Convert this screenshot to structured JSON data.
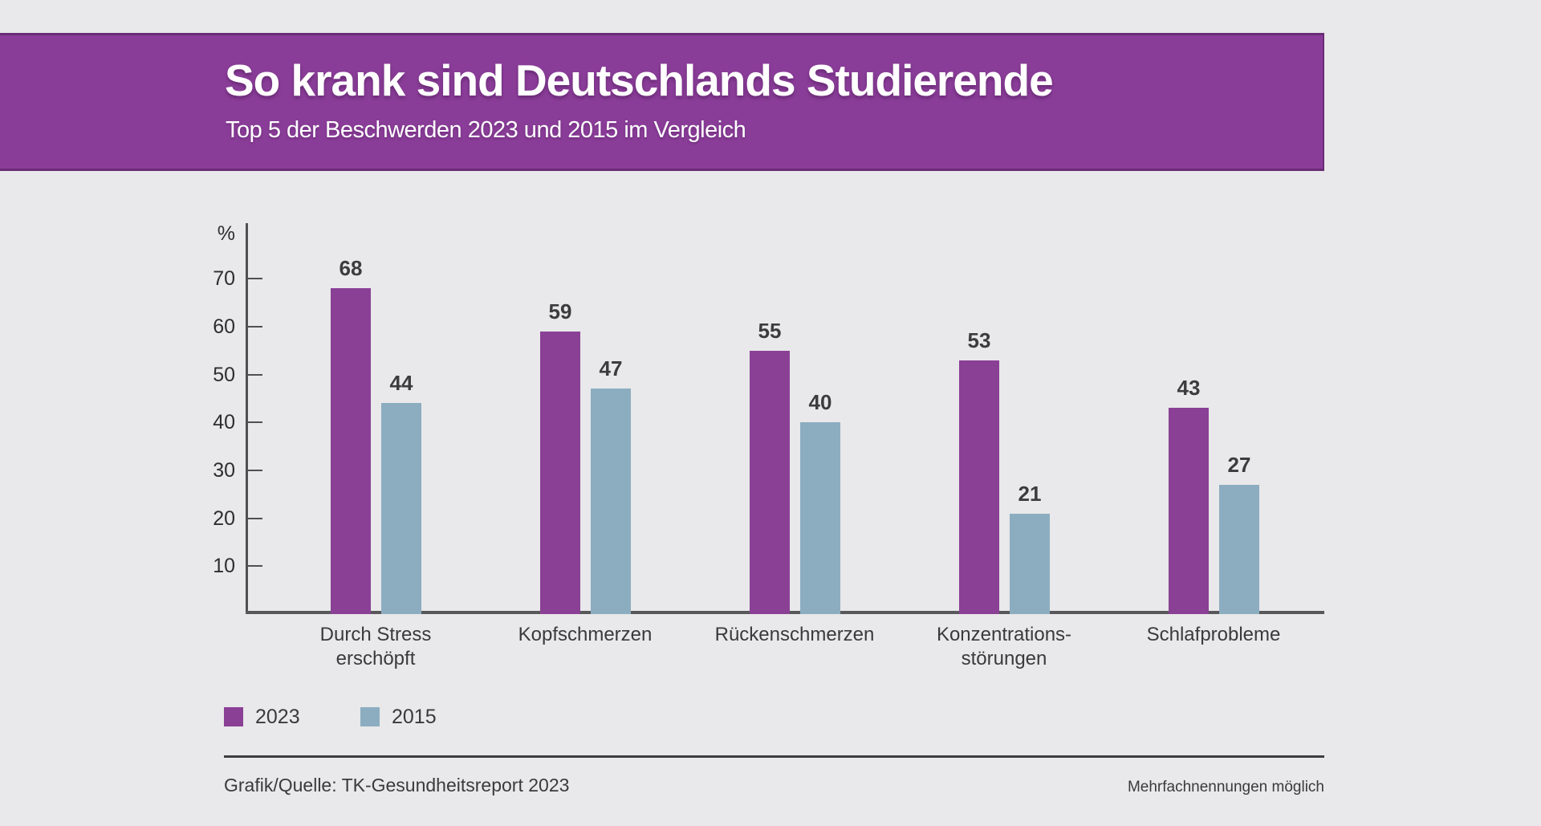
{
  "header": {
    "title": "So krank sind Deutschlands Studierende",
    "subtitle": "Top 5 der Beschwerden 2023 und 2015 im Vergleich"
  },
  "colors": {
    "background": "#e9e8ea",
    "banner": "#8a3d98",
    "banner_border": "#6a2c77",
    "axis": "#505052",
    "text": "#3a3a3c",
    "series_2023": "#8a4095",
    "series_2015": "#8cadc0"
  },
  "chart_data": {
    "type": "bar",
    "title": "So krank sind Deutschlands Studierende",
    "subtitle": "Top 5 der Beschwerden 2023 und 2015 im Vergleich",
    "unit_label": "%",
    "categories": [
      "Durch Stress erschöpft",
      "Kopfschmerzen",
      "Rückenschmerzen",
      "Konzentrationsstörungen",
      "Schlafprobleme"
    ],
    "category_display_lines": [
      [
        "Durch Stress",
        "erschöpft"
      ],
      [
        "Kopfschmerzen"
      ],
      [
        "Rückenschmerzen"
      ],
      [
        "Konzentrations-",
        "störungen"
      ],
      [
        "Schlafprobleme"
      ]
    ],
    "series": [
      {
        "name": "2023",
        "color": "#8a4095",
        "values": [
          68,
          59,
          55,
          53,
          43
        ]
      },
      {
        "name": "2015",
        "color": "#8cadc0",
        "values": [
          44,
          47,
          40,
          21,
          27
        ]
      }
    ],
    "yticks": [
      10,
      20,
      30,
      40,
      50,
      60,
      70
    ],
    "ylim": [
      0,
      81
    ],
    "grid": false,
    "value_labels": true,
    "legend_position": "bottom-left"
  },
  "footer": {
    "source": "Grafik/Quelle: TK-Gesundheitsreport 2023",
    "note": "Mehrfachnennungen möglich"
  }
}
